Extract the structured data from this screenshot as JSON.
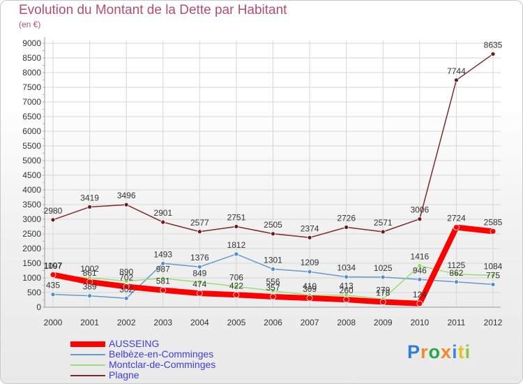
{
  "title": "Evolution du Montant de la Dette par Habitant",
  "unit": "(en €)",
  "brand": {
    "letters": [
      {
        "char": "P",
        "color": "#2f7fd6"
      },
      {
        "char": "r",
        "color": "#f08a24"
      },
      {
        "char": "o",
        "color": "#27a845"
      },
      {
        "char": "x",
        "color": "#f08a24"
      },
      {
        "char": "i",
        "color": "#3a8ae0"
      },
      {
        "char": "t",
        "color": "#e9c21e"
      },
      {
        "char": "i",
        "color": "#8dc63f"
      }
    ]
  },
  "chart_data": {
    "type": "line",
    "x": [
      "2000",
      "2001",
      "2002",
      "2003",
      "2004",
      "2005",
      "2006",
      "2007",
      "2008",
      "2009",
      "2010",
      "2011",
      "2012"
    ],
    "ylim": [
      0,
      9000
    ],
    "yticks": [
      "0",
      "500",
      "1000",
      "1500",
      "2000",
      "2500",
      "3000",
      "3500",
      "4000",
      "4500",
      "5000",
      "5500",
      "6000",
      "6500",
      "7000",
      "7500",
      "8000",
      "8500",
      "9000"
    ],
    "grid": true,
    "legend_position": "bottom-left",
    "series": [
      {
        "name": "AUSSEING",
        "color": "#ff0000",
        "values": [
          1107,
          861,
          702,
          581,
          474,
          422,
          357,
          309,
          260,
          178,
          124,
          2724,
          2585
        ]
      },
      {
        "name": "Belbèze-en-Comminges",
        "color": "#6699cc",
        "values": [
          435,
          389,
          302,
          1493,
          1376,
          1812,
          1301,
          1209,
          1034,
          1025,
          946,
          862,
          775
        ]
      },
      {
        "name": "Montclar-de-Comminges",
        "color": "#99dd77",
        "values": [
          1097,
          1002,
          890,
          987,
          849,
          706,
          556,
          410,
          413,
          279,
          1416,
          1125,
          1084
        ]
      },
      {
        "name": "Plagne",
        "color": "#7a2a2a",
        "values": [
          2980,
          3419,
          3496,
          2901,
          2577,
          2751,
          2505,
          2374,
          2726,
          2571,
          3006,
          7744,
          8635
        ]
      }
    ]
  }
}
